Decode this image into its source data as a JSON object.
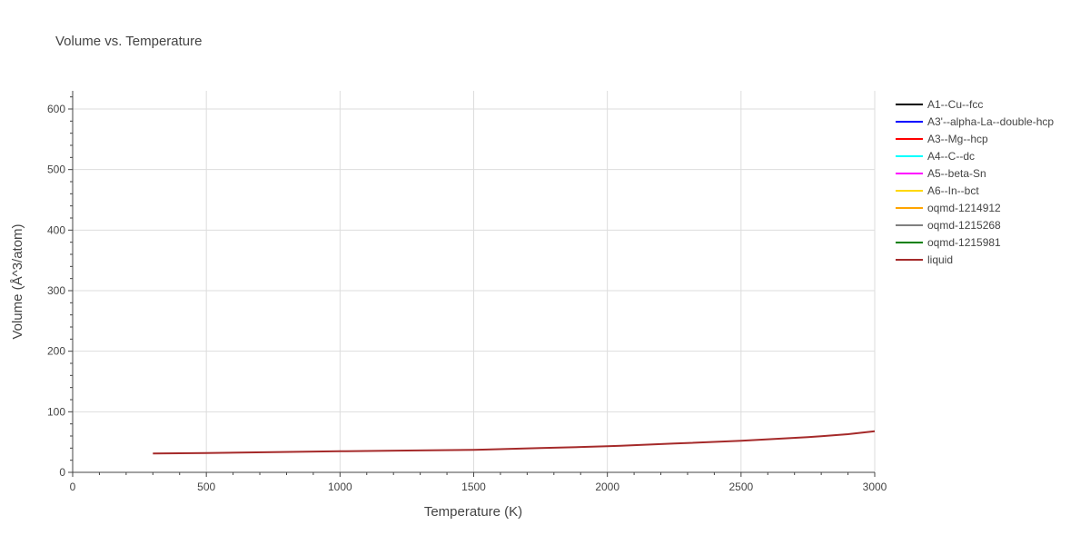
{
  "chart_data": {
    "type": "line",
    "title": "Volume vs. Temperature",
    "xlabel": "Temperature (K)",
    "ylabel": "Volume (Å^3/atom)",
    "xlim": [
      0,
      3000
    ],
    "ylim": [
      0,
      630
    ],
    "xticks": [
      0,
      500,
      1000,
      1500,
      2000,
      2500,
      3000
    ],
    "yticks": [
      0,
      100,
      200,
      300,
      400,
      500,
      600
    ],
    "grid": true,
    "legend_position": "right",
    "series": [
      {
        "name": "A1--Cu--fcc",
        "color": "#000000",
        "x": [],
        "y": []
      },
      {
        "name": "A3'--alpha-La--double-hcp",
        "color": "#0000ff",
        "x": [],
        "y": []
      },
      {
        "name": "A3--Mg--hcp",
        "color": "#ff0000",
        "x": [],
        "y": []
      },
      {
        "name": "A4--C--dc",
        "color": "#00ffff",
        "x": [],
        "y": []
      },
      {
        "name": "A5--beta-Sn",
        "color": "#ff00ff",
        "x": [],
        "y": []
      },
      {
        "name": "A6--In--bct",
        "color": "#ffd700",
        "x": [],
        "y": []
      },
      {
        "name": "oqmd-1214912",
        "color": "#ffa500",
        "x": [],
        "y": []
      },
      {
        "name": "oqmd-1215268",
        "color": "#808080",
        "x": [],
        "y": []
      },
      {
        "name": "oqmd-1215981",
        "color": "#008000",
        "x": [],
        "y": []
      },
      {
        "name": "liquid",
        "color": "#a52a2a",
        "x": [
          300,
          500,
          750,
          1000,
          1250,
          1500,
          1550,
          1750,
          2000,
          2050,
          2250,
          2500,
          2750,
          2800,
          2900,
          3000
        ],
        "y": [
          31,
          32,
          33.5,
          34.8,
          36,
          37.2,
          37.6,
          40,
          43,
          44,
          47.5,
          52,
          58,
          59.5,
          63,
          68
        ]
      }
    ]
  }
}
